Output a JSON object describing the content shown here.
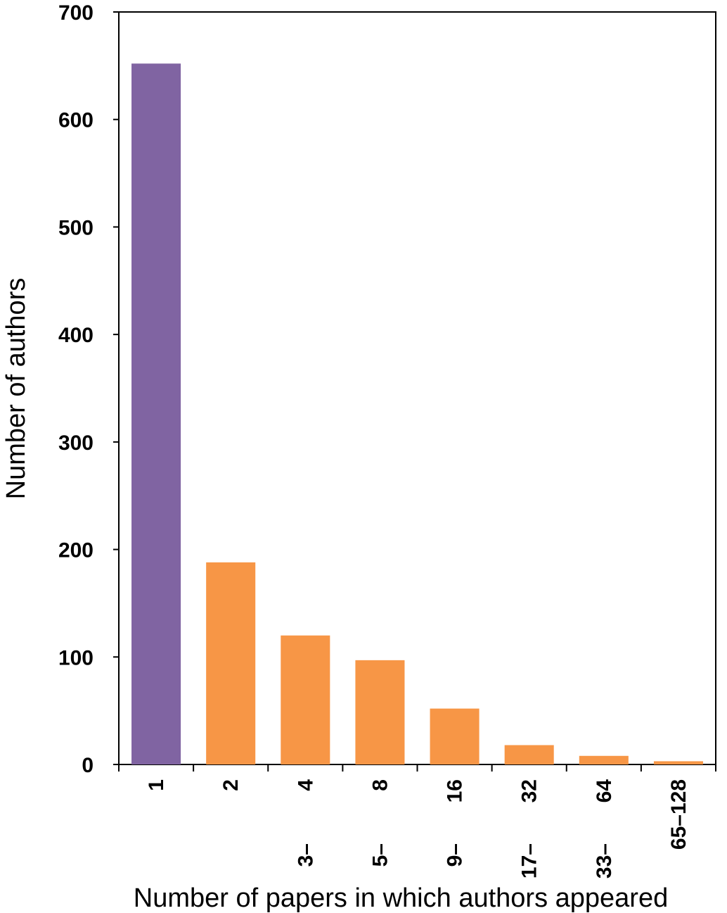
{
  "chart_data": {
    "type": "bar",
    "title": "",
    "xlabel": "Number of papers in which authors appeared",
    "ylabel": "Number of authors",
    "ylim": [
      0,
      700
    ],
    "yticks": [
      0,
      100,
      200,
      300,
      400,
      500,
      600,
      700
    ],
    "grid": false,
    "legend": "none",
    "categories": [
      [
        "1"
      ],
      [
        "2"
      ],
      [
        "3–",
        "4"
      ],
      [
        "5–",
        "8"
      ],
      [
        "9–",
        "16"
      ],
      [
        "17–",
        "32"
      ],
      [
        "33–",
        "64"
      ],
      [
        "65–128"
      ]
    ],
    "values": [
      652,
      188,
      120,
      97,
      52,
      18,
      8,
      3
    ],
    "colors": [
      "#8064a2",
      "#f79646",
      "#f79646",
      "#f79646",
      "#f79646",
      "#f79646",
      "#f79646",
      "#f79646"
    ]
  }
}
